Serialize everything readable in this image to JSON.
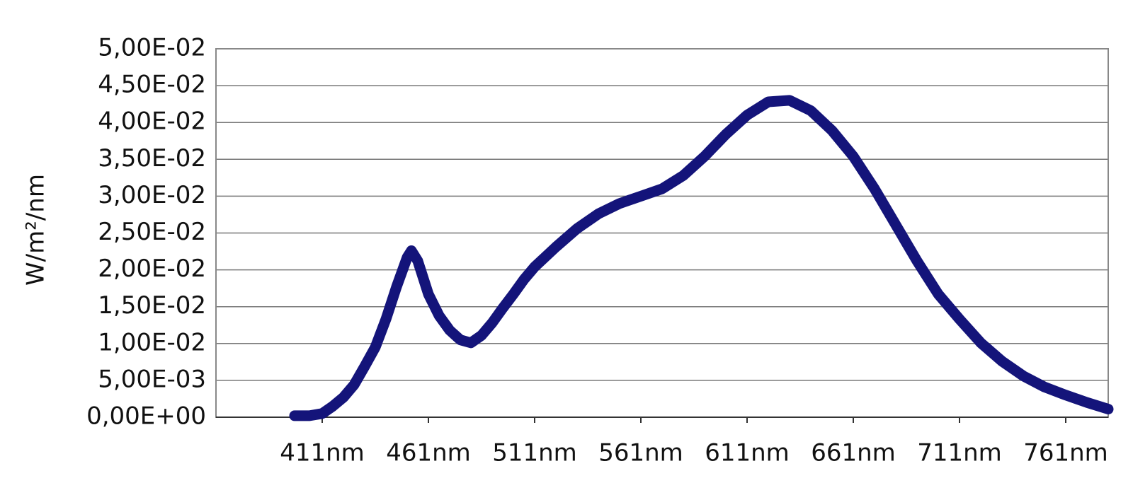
{
  "chart_data": {
    "type": "line",
    "ylabel": "W/m²/nm",
    "x": [
      398,
      405,
      411,
      416,
      421,
      426,
      431,
      436,
      441,
      446,
      451,
      453,
      456,
      461,
      466,
      471,
      476,
      481,
      486,
      491,
      496,
      501,
      506,
      511,
      521,
      531,
      541,
      551,
      561,
      571,
      581,
      591,
      601,
      611,
      621,
      631,
      641,
      651,
      661,
      671,
      681,
      691,
      701,
      711,
      721,
      731,
      741,
      751,
      761,
      771,
      781
    ],
    "values": [
      0.0002,
      0.0002,
      0.0005,
      0.0015,
      0.0027,
      0.0044,
      0.0069,
      0.0095,
      0.0133,
      0.0177,
      0.0217,
      0.0226,
      0.0212,
      0.0167,
      0.0138,
      0.0118,
      0.0105,
      0.0101,
      0.0111,
      0.0128,
      0.0148,
      0.0167,
      0.0187,
      0.0204,
      0.0231,
      0.0256,
      0.0276,
      0.029,
      0.03,
      0.031,
      0.0328,
      0.0354,
      0.0384,
      0.041,
      0.0428,
      0.043,
      0.0416,
      0.0389,
      0.0354,
      0.031,
      0.0261,
      0.0212,
      0.0167,
      0.0133,
      0.0101,
      0.0076,
      0.0056,
      0.0041,
      0.003,
      0.002,
      0.0011
    ],
    "color": "#14147a",
    "xlim": [
      361,
      781
    ],
    "xticks": [
      {
        "value": 411,
        "label": "411nm"
      },
      {
        "value": 461,
        "label": "461nm"
      },
      {
        "value": 511,
        "label": "511nm"
      },
      {
        "value": 561,
        "label": "561nm"
      },
      {
        "value": 611,
        "label": "611nm"
      },
      {
        "value": 661,
        "label": "661nm"
      },
      {
        "value": 711,
        "label": "711nm"
      },
      {
        "value": 761,
        "label": "761nm"
      }
    ],
    "ylim": [
      0,
      0.05
    ],
    "yticks": [
      {
        "value": 0,
        "label": "0,00E+00"
      },
      {
        "value": 0.005,
        "label": "5,00E-03"
      },
      {
        "value": 0.01,
        "label": "1,00E-02"
      },
      {
        "value": 0.015,
        "label": "1,50E-02"
      },
      {
        "value": 0.02,
        "label": "2,00E-02"
      },
      {
        "value": 0.025,
        "label": "2,50E-02"
      },
      {
        "value": 0.03,
        "label": "3,00E-02"
      },
      {
        "value": 0.035,
        "label": "3,50E-02"
      },
      {
        "value": 0.04,
        "label": "4,00E-02"
      },
      {
        "value": 0.045,
        "label": "4,50E-02"
      },
      {
        "value": 0.05,
        "label": "5,00E-02"
      }
    ],
    "grid": true
  }
}
